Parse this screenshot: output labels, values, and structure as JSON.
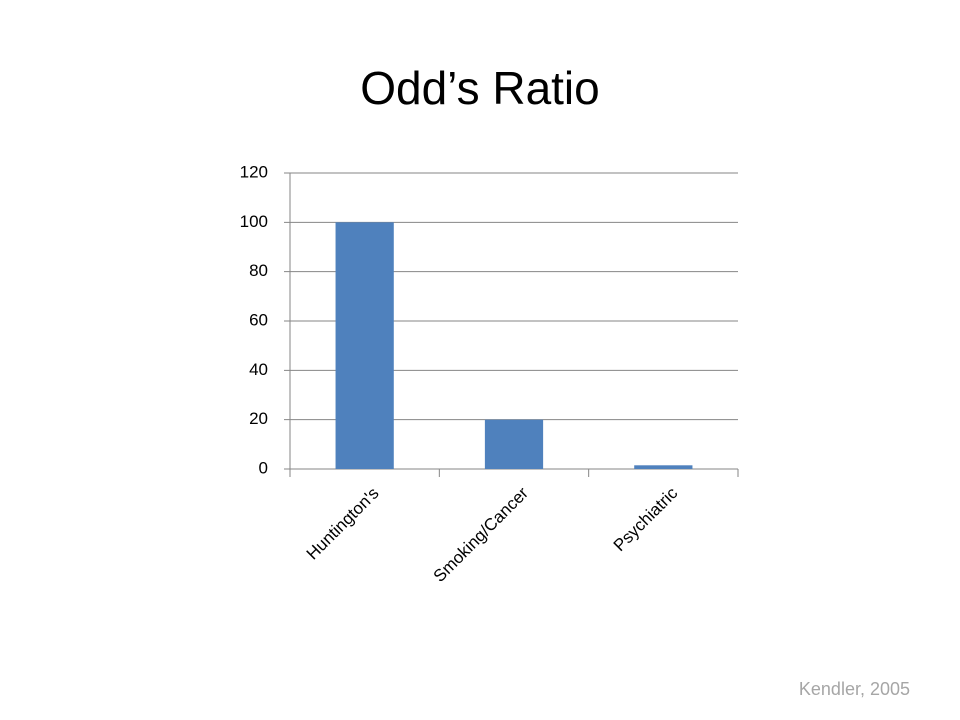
{
  "chart_data": {
    "type": "bar",
    "title": "Odd’s Ratio",
    "categories": [
      "Huntington's",
      "Smoking/Cancer",
      "Psychiatric"
    ],
    "values": [
      100,
      20,
      1.5
    ],
    "color": "#4f81bd",
    "ylim": [
      0,
      120
    ],
    "yticks": [
      0,
      20,
      40,
      60,
      80,
      100,
      120
    ],
    "grid": true,
    "source": "Kendler, 2005"
  }
}
